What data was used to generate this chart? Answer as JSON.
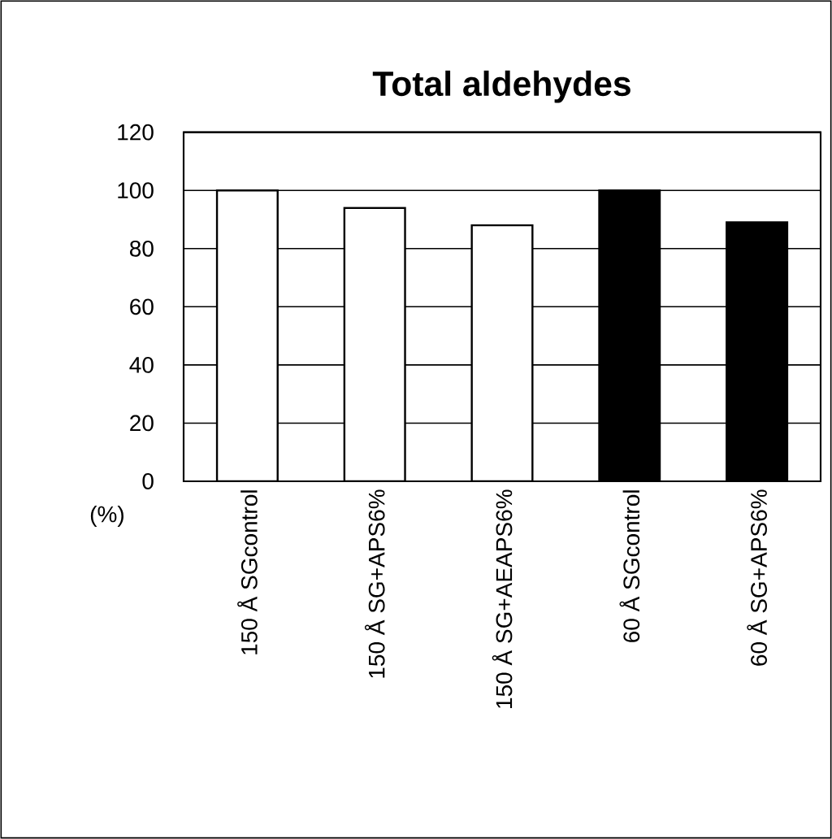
{
  "chart_data": {
    "type": "bar",
    "title": "Total aldehydes",
    "ylabel": "(%)",
    "categories": [
      "150 Å SGcontrol",
      "150 Å SG+APS6%",
      "150 Å SG+AEAPS6%",
      "60 Å SGcontrol",
      "60 Å SG+APS6%"
    ],
    "values": [
      100,
      94,
      88,
      100,
      89
    ],
    "colors": [
      "#ffffff",
      "#ffffff",
      "#ffffff",
      "#000000",
      "#000000"
    ],
    "ylim": [
      0,
      120
    ],
    "yticks": [
      0,
      20,
      40,
      60,
      80,
      100,
      120
    ],
    "grid": "y"
  }
}
